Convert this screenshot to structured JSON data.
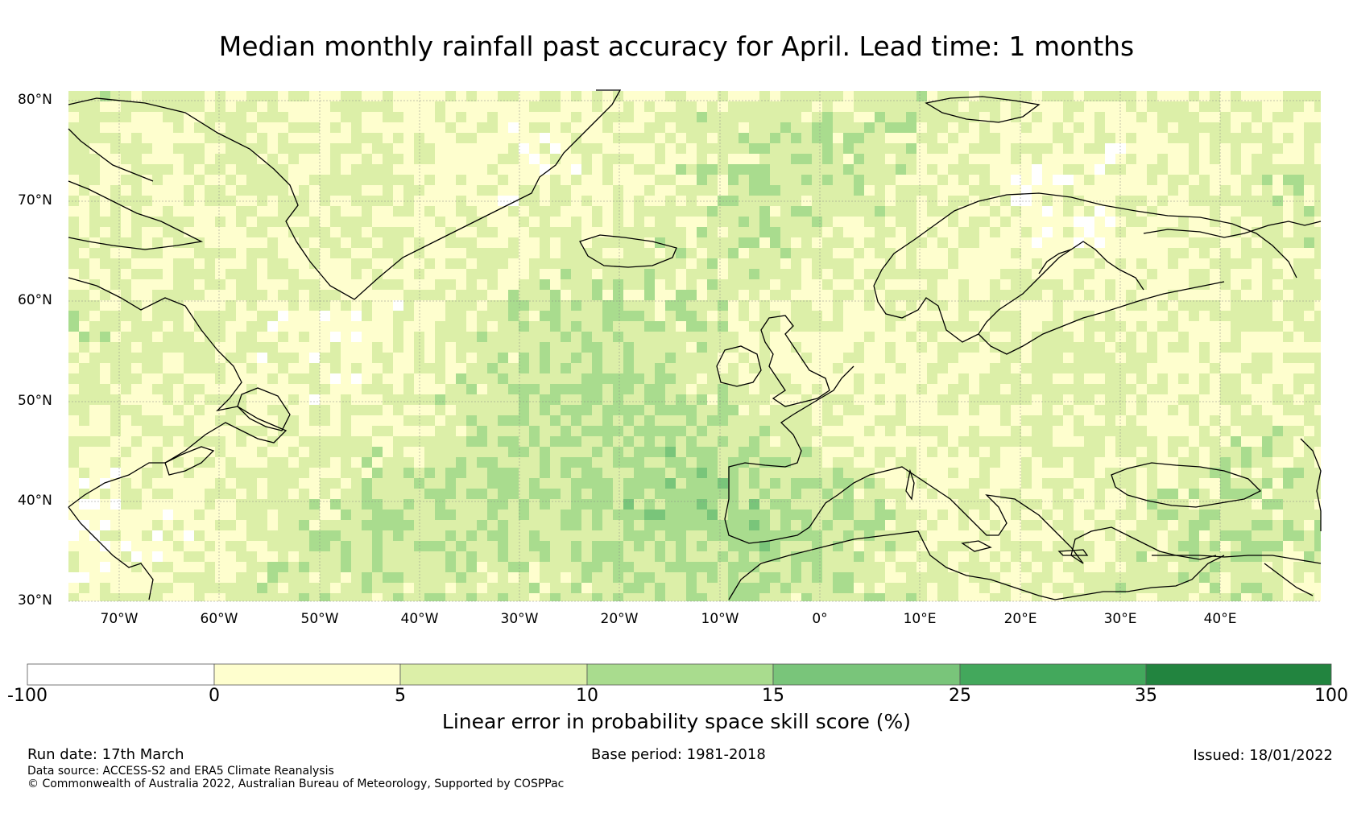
{
  "title": "Median monthly rainfall past accuracy for April. Lead time: 1 months",
  "map": {
    "lat_labels": [
      "80°N",
      "70°N",
      "60°N",
      "50°N",
      "40°N",
      "30°N"
    ],
    "lon_labels": [
      "70°W",
      "60°W",
      "50°W",
      "40°W",
      "30°W",
      "20°W",
      "10°W",
      "0°",
      "10°E",
      "20°E",
      "30°E",
      "40°E"
    ],
    "colors": [
      "#ffffff",
      "#fefece",
      "#dcefa8",
      "#a9dc8e",
      "#79c57a",
      "#43a85c",
      "#22843f"
    ],
    "coastline_color": "#000000"
  },
  "colorbar": {
    "ticks": [
      "-100",
      "0",
      "5",
      "10",
      "15",
      "25",
      "35",
      "100"
    ],
    "label": "Linear error in probability space skill score (%)"
  },
  "footer": {
    "run_date": "Run date: 17th March",
    "base_period": "Base period: 1981-2018",
    "issued": "Issued: 18/01/2022",
    "data_source": "Data source: ACCESS-S2 and ERA5 Climate Reanalysis",
    "copyright": "© Commonwealth of Australia 2022, Australian Bureau of Meteorology, Supported by COSPPac"
  }
}
